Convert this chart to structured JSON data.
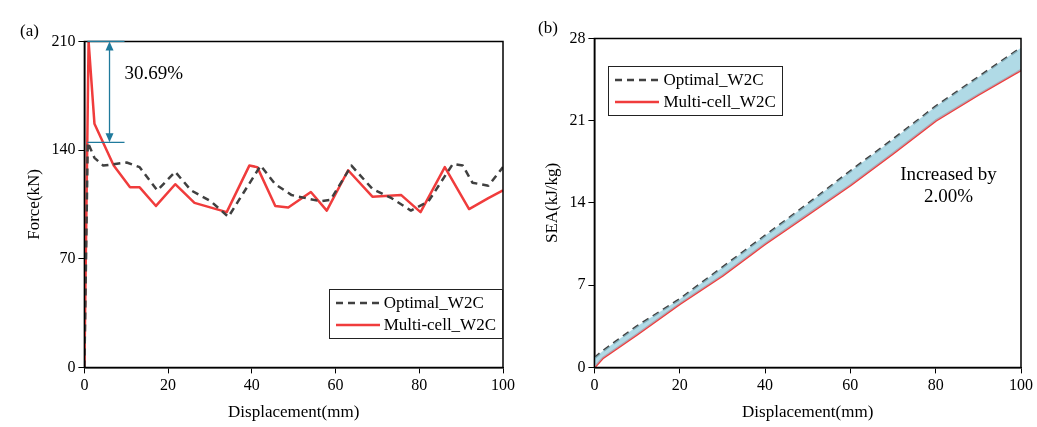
{
  "chart_data": [
    {
      "type": "line",
      "title": "(a)",
      "xlabel": "Displacement(mm)",
      "ylabel": "Force(kN)",
      "xlim": [
        0,
        100
      ],
      "xticks": [
        0,
        20,
        40,
        60,
        80,
        100
      ],
      "ylim": [
        0,
        210
      ],
      "yticks": [
        0,
        70,
        140,
        210
      ],
      "legend": "bottom right",
      "marker": "none",
      "grid": false,
      "annotations": [
        {
          "text": "30.69%",
          "x": 1.0,
          "y": 210
        }
      ],
      "series": [
        {
          "name": "Optimal_W2C",
          "color": "#404040",
          "line_style": "dashed",
          "x": [
            0,
            0.8,
            2.4,
            4.5,
            10.1,
            13.2,
            17.4,
            21.7,
            25.5,
            30.2,
            34.4,
            37.9,
            42.1,
            45.6,
            49.5,
            56.4,
            58.8,
            63.8,
            68.8,
            73.4,
            78,
            82.2,
            88,
            90.4,
            92.7,
            96.5,
            100
          ],
          "values": [
            0,
            145,
            135,
            130,
            132,
            129,
            114,
            126,
            114,
            107,
            97,
            112,
            130,
            118,
            111,
            107,
            108,
            130,
            115,
            109,
            101,
            107,
            131,
            130,
            119,
            117,
            129
          ]
        },
        {
          "name": "Multi-cell_W2C",
          "color": "#f03c3c",
          "line_style": "solid",
          "x": [
            0,
            1.0,
            2.4,
            7.0,
            10.9,
            13.2,
            17.1,
            21.7,
            26.3,
            34,
            39.4,
            41.3,
            45.6,
            48.7,
            54.1,
            57.9,
            63,
            68.8,
            75.7,
            80.3,
            86.1,
            91.9,
            96.5,
            100
          ],
          "values": [
            0,
            210,
            157,
            130,
            116,
            116,
            104,
            118,
            106,
            100,
            130,
            129,
            104,
            103,
            113,
            101,
            127,
            110,
            111,
            100,
            129,
            102,
            109,
            114
          ]
        }
      ]
    },
    {
      "type": "line",
      "title": "(b)",
      "xlabel": "Displacement(mm)",
      "ylabel": "SEA(kJ/kg)",
      "xlim": [
        0,
        100
      ],
      "xticks": [
        0,
        20,
        40,
        60,
        80,
        100
      ],
      "ylim": [
        0,
        28
      ],
      "yticks": [
        0,
        7,
        14,
        21,
        28
      ],
      "legend": "top left",
      "marker": "none",
      "grid": false,
      "annotations": [
        "Increased by 2.00%"
      ],
      "series": [
        {
          "name": "Optimal_W2C",
          "color": "#404040",
          "line_style": "dashed",
          "x": [
            0,
            2,
            10,
            20,
            30,
            40,
            50,
            60,
            70,
            80,
            90,
            100
          ],
          "values": [
            0.8,
            1.4,
            3.5,
            5.8,
            8.5,
            11.2,
            13.9,
            16.7,
            19.4,
            22.2,
            24.7,
            27.2
          ],
          "lower": [
            0,
            0.8,
            2.8,
            5.4,
            7.8,
            10.5,
            13.0,
            15.5,
            18.2,
            21.0,
            23.2,
            25.3
          ],
          "upper": [
            0.8,
            1.4,
            3.5,
            5.8,
            8.5,
            11.2,
            13.9,
            16.7,
            19.4,
            22.2,
            24.7,
            27.2
          ]
        },
        {
          "name": "Multi-cell_W2C",
          "color": "#f03c3c",
          "line_style": "solid",
          "x": [
            0,
            2,
            10,
            20,
            30,
            40,
            50,
            60,
            70,
            80,
            90,
            100
          ],
          "values": [
            0,
            0.8,
            2.8,
            5.4,
            7.8,
            10.5,
            13.0,
            15.5,
            18.2,
            21.0,
            23.2,
            25.3
          ]
        }
      ]
    }
  ]
}
